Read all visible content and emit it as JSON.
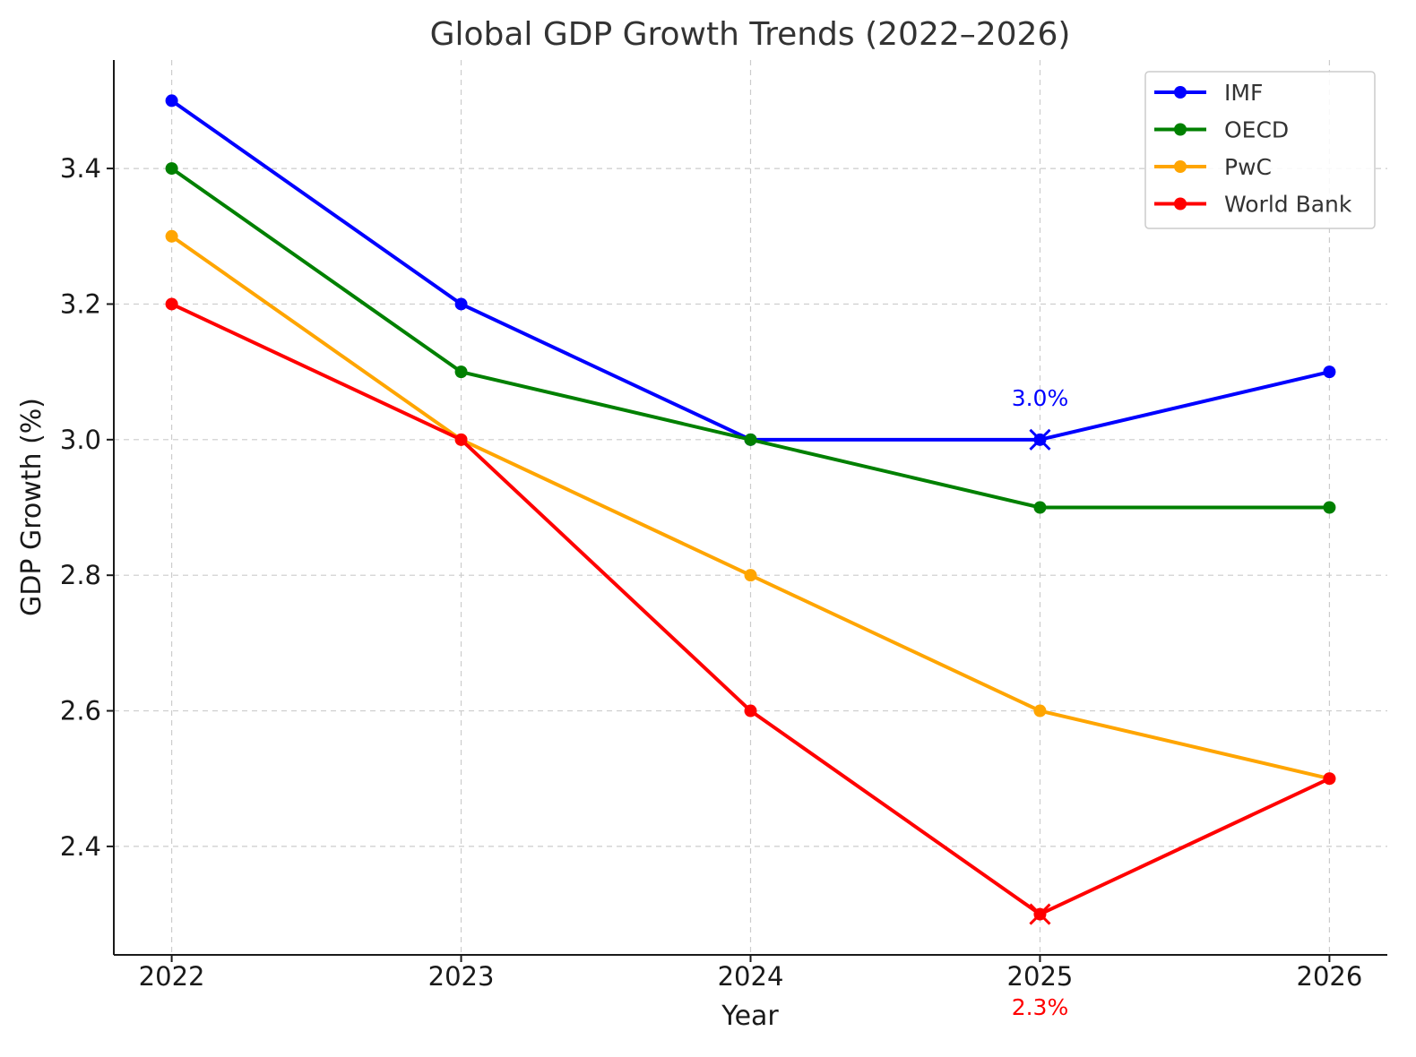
{
  "chart_data": {
    "type": "line",
    "title": "Global GDP Growth Trends (2022–2026)",
    "xlabel": "Year",
    "ylabel": "GDP Growth (%)",
    "x": [
      2022,
      2023,
      2024,
      2025,
      2026
    ],
    "x_tick_labels": [
      "2022",
      "2023",
      "2024",
      "2025",
      "2026"
    ],
    "y_ticks": [
      2.4,
      2.6,
      2.8,
      3.0,
      3.2,
      3.4
    ],
    "y_tick_labels": [
      "2.4",
      "2.6",
      "2.8",
      "3.0",
      "3.2",
      "3.4"
    ],
    "ylim": [
      2.24,
      3.56
    ],
    "xlim": [
      2021.8,
      2026.2
    ],
    "grid": true,
    "legend_position": "top-right",
    "series": [
      {
        "name": "IMF",
        "color": "#0000ff",
        "values": [
          3.5,
          3.2,
          3.0,
          3.0,
          3.1
        ]
      },
      {
        "name": "OECD",
        "color": "#008000",
        "values": [
          3.4,
          3.1,
          3.0,
          2.9,
          2.9
        ]
      },
      {
        "name": "PwC",
        "color": "#ffa500",
        "values": [
          3.3,
          3.0,
          2.8,
          2.6,
          2.5
        ]
      },
      {
        "name": "World Bank",
        "color": "#ff0000",
        "values": [
          3.2,
          3.0,
          2.6,
          2.3,
          2.5
        ]
      }
    ],
    "annotations": [
      {
        "text": "3.0%",
        "x": 2025,
        "y": 3.0,
        "series": "IMF",
        "color": "#0000ff",
        "marker": "x",
        "placement": "above"
      },
      {
        "text": "2.3%",
        "x": 2025,
        "y": 2.3,
        "series": "World Bank",
        "color": "#ff0000",
        "marker": "x",
        "placement": "below-axis"
      }
    ]
  }
}
